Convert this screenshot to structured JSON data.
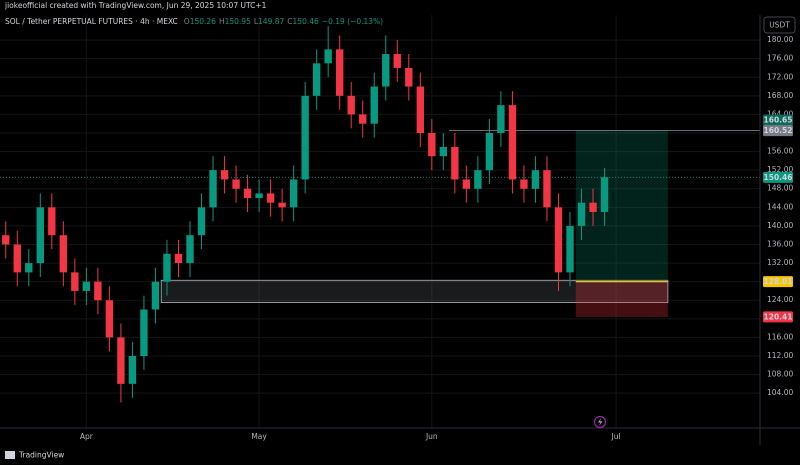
{
  "header": {
    "credit": "jiokeofficial created with TradingView.com, Jun 29, 2025 10:07 UTC+1",
    "symbol": "SOL / Tether PERPETUAL FUTURES · 4h · MEXC",
    "ohlc": [
      [
        "O",
        "150.26"
      ],
      [
        "H",
        "150.95"
      ],
      [
        "L",
        "149.87"
      ],
      [
        "C",
        "150.46"
      ]
    ],
    "change": "−0.19 (−0.13%)"
  },
  "currency": "USDT",
  "footer": "TradingView",
  "chart_data": {
    "type": "candlestick",
    "categories": [
      null,
      null,
      null,
      null,
      null,
      null,
      null,
      "Apr",
      null,
      null,
      null,
      null,
      null,
      null,
      null,
      null,
      null,
      null,
      null,
      null,
      null,
      null,
      "May",
      null,
      null,
      null,
      null,
      null,
      null,
      null,
      null,
      null,
      null,
      null,
      null,
      null,
      null,
      "Jun",
      null,
      null,
      null,
      null,
      null,
      null,
      null,
      null,
      null,
      null,
      null,
      null,
      null,
      null,
      null,
      "Jul",
      null,
      null,
      null,
      null,
      null,
      null,
      null,
      null,
      null,
      null,
      null,
      null
    ],
    "open": [
      138,
      136,
      130,
      132,
      144,
      138,
      130,
      126,
      128,
      124,
      116,
      106,
      112,
      122,
      128,
      134,
      132,
      138,
      144,
      152,
      150,
      148,
      146,
      147,
      145,
      144,
      150,
      168,
      175,
      178,
      168,
      164,
      162,
      170,
      177,
      174,
      170,
      160,
      155,
      157,
      150,
      148,
      152,
      160,
      166,
      150,
      148,
      152,
      144,
      130,
      140,
      145,
      143,
      null,
      null,
      null,
      null,
      null,
      null,
      null,
      null,
      null,
      null,
      null,
      null,
      null
    ],
    "high": [
      141,
      139,
      135,
      147,
      147,
      141,
      133,
      131,
      131,
      127,
      119,
      115,
      125,
      131,
      137,
      137,
      141,
      147,
      155,
      155,
      153,
      151,
      150,
      150,
      148,
      153,
      171,
      178,
      183,
      181,
      171,
      167,
      173,
      181,
      180,
      177,
      173,
      163,
      160,
      160,
      153,
      155,
      163,
      169,
      169,
      153,
      155,
      155,
      147,
      143,
      148,
      148,
      152.5,
      null,
      null,
      null,
      null,
      null,
      null,
      null,
      null,
      null,
      null,
      null,
      null,
      null
    ],
    "low": [
      133,
      127,
      127,
      129,
      135,
      127,
      123,
      123,
      121,
      113,
      102,
      103,
      109,
      119,
      125,
      129,
      129,
      135,
      141,
      147,
      145,
      143,
      143,
      142,
      141,
      141,
      147,
      165,
      172,
      165,
      161,
      159,
      159,
      167,
      171,
      167,
      157,
      152,
      152,
      147,
      145,
      145,
      149,
      157,
      147,
      145,
      145,
      141,
      126,
      127,
      137,
      140,
      140,
      null,
      null,
      null,
      null,
      null,
      null,
      null,
      null,
      null,
      null,
      null,
      null,
      null
    ],
    "close": [
      136,
      130,
      132,
      144,
      138,
      130,
      126,
      128,
      124,
      116,
      106,
      112,
      122,
      128,
      134,
      132,
      138,
      144,
      152,
      150,
      148,
      146,
      147,
      145,
      144,
      150,
      168,
      175,
      178,
      168,
      164,
      162,
      170,
      177,
      174,
      170,
      160,
      155,
      157,
      150,
      148,
      152,
      160,
      166,
      150,
      148,
      152,
      144,
      130,
      140,
      145,
      143,
      150.46,
      null,
      null,
      null,
      null,
      null,
      null,
      null,
      null,
      null,
      null,
      null,
      null,
      null
    ],
    "up_color": "#089981",
    "down_color": "#f23645",
    "ylim": [
      96.5,
      185.4
    ],
    "yticks": [
      {
        "value": 104,
        "label": "104.00"
      },
      {
        "value": 108,
        "label": "108.00"
      },
      {
        "value": 112,
        "label": "112.00"
      },
      {
        "value": 116,
        "label": "116.00"
      },
      {
        "value": 120,
        "label": "120.00"
      },
      {
        "value": 124,
        "label": "124.00"
      },
      {
        "value": 128,
        "label": "128.00"
      },
      {
        "value": 132,
        "label": "132.00"
      },
      {
        "value": 136,
        "label": "136.00"
      },
      {
        "value": 140,
        "label": "140.00"
      },
      {
        "value": 144,
        "label": "144.00"
      },
      {
        "value": 148,
        "label": "148.00"
      },
      {
        "value": 152,
        "label": "152.00"
      },
      {
        "value": 156,
        "label": "156.00"
      },
      {
        "value": 160,
        "label": "160.00"
      },
      {
        "value": 164,
        "label": "164.00"
      },
      {
        "value": 168,
        "label": "168.00"
      },
      {
        "value": 172,
        "label": "172.00"
      },
      {
        "value": 176,
        "label": "176.00"
      },
      {
        "value": 180,
        "label": "180.00"
      }
    ],
    "grid": true,
    "last_price": 150.46,
    "zone": {
      "top": 128.3,
      "bottom": 123.5,
      "start": 14,
      "end": 58
    },
    "position": {
      "target": 160.65,
      "entry": 128.01,
      "stop": 120.41,
      "start": 50,
      "end": 58
    },
    "horizontal_ray": {
      "value": 160.52,
      "start": 39
    }
  }
}
